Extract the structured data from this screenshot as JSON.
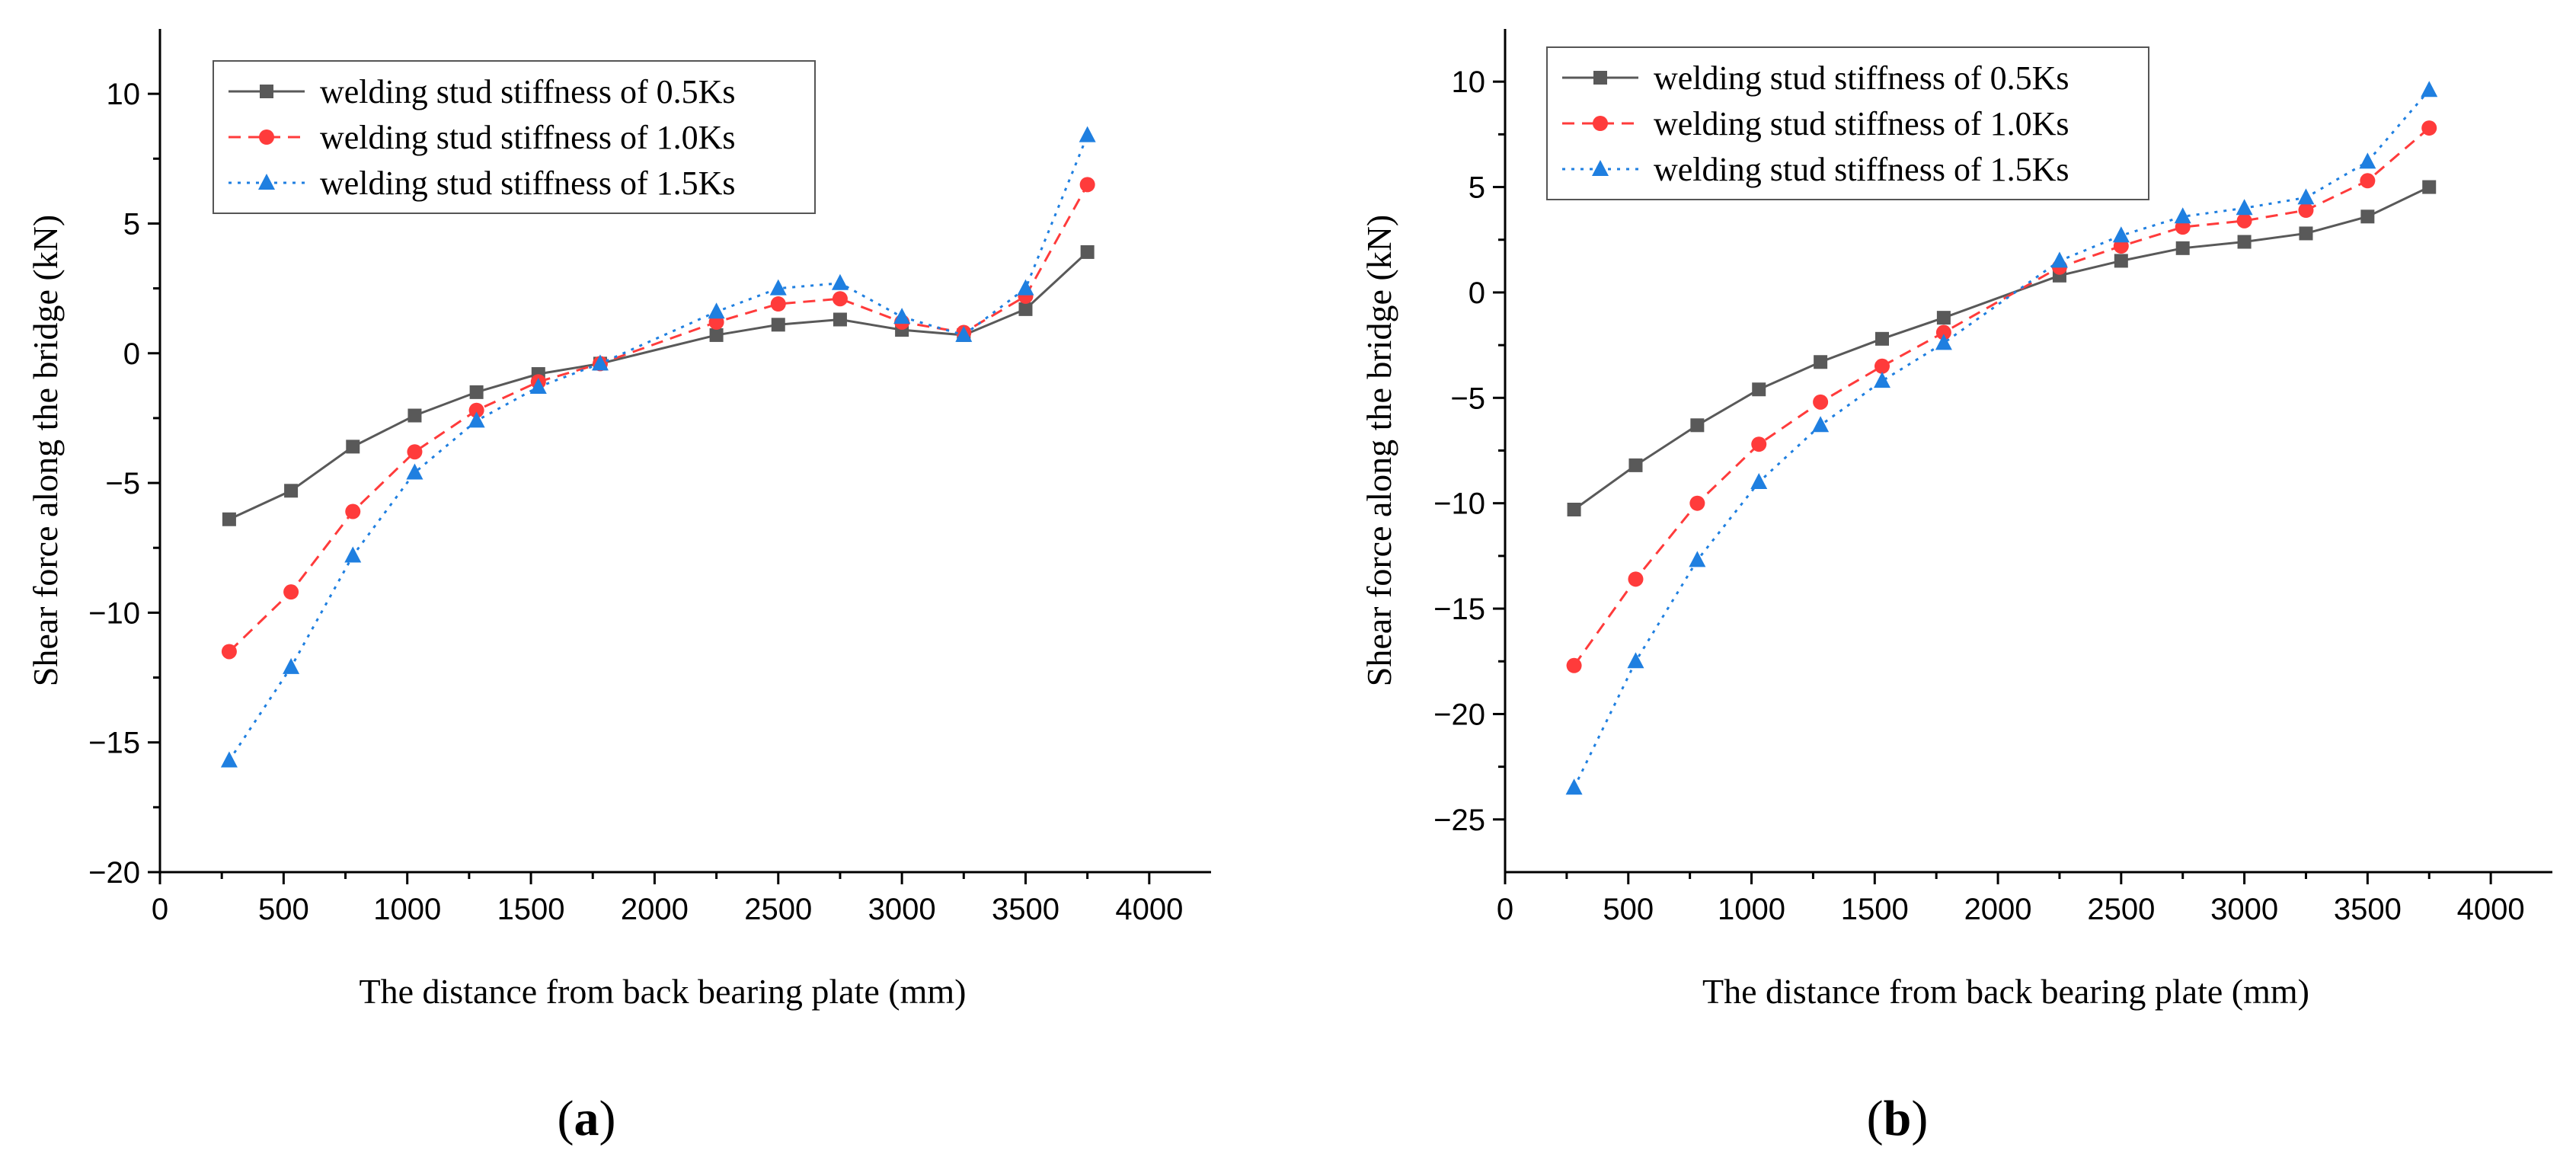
{
  "chart_data": [
    {
      "type": "line",
      "panel_label": "a",
      "xlabel": "The distance from back bearing plate (mm)",
      "ylabel": "Shear force along the bridge (kN)",
      "xlim": [
        0,
        4250
      ],
      "ylim": [
        -20,
        12.5
      ],
      "xticks": [
        0,
        500,
        1000,
        1500,
        2000,
        2500,
        3000,
        3500,
        4000
      ],
      "yticks": [
        -20,
        -15,
        -10,
        -5,
        0,
        5,
        10
      ],
      "legend_position": "top-left",
      "series": [
        {
          "name": "welding stud stiffness of 0.5Ks",
          "color": "#595959",
          "marker": "square",
          "line_style": "solid",
          "x": [
            280,
            530,
            780,
            1030,
            1280,
            1530,
            1780,
            2250,
            2500,
            2750,
            3000,
            3250,
            3500,
            3750
          ],
          "values": [
            -6.4,
            -5.3,
            -3.6,
            -2.4,
            -1.5,
            -0.8,
            -0.4,
            0.7,
            1.1,
            1.3,
            0.9,
            0.7,
            1.7,
            3.9
          ]
        },
        {
          "name": "welding stud stiffness of 1.0Ks",
          "color": "#ff3b3b",
          "marker": "circle",
          "line_style": "dashed",
          "x": [
            280,
            530,
            780,
            1030,
            1280,
            1530,
            1780,
            2250,
            2500,
            2750,
            3000,
            3250,
            3500,
            3750
          ],
          "values": [
            -11.5,
            -9.2,
            -6.1,
            -3.8,
            -2.2,
            -1.1,
            -0.4,
            1.2,
            1.9,
            2.1,
            1.2,
            0.8,
            2.2,
            6.5
          ]
        },
        {
          "name": "welding stud stiffness of 1.5Ks",
          "color": "#1f7fe0",
          "marker": "triangle",
          "line_style": "dotted",
          "x": [
            280,
            530,
            780,
            1030,
            1280,
            1530,
            1780,
            2250,
            2500,
            2750,
            3000,
            3250,
            3500,
            3750
          ],
          "values": [
            -15.7,
            -12.1,
            -7.8,
            -4.6,
            -2.6,
            -1.3,
            -0.4,
            1.6,
            2.5,
            2.7,
            1.4,
            0.7,
            2.5,
            8.4
          ]
        }
      ]
    },
    {
      "type": "line",
      "panel_label": "b",
      "xlabel": "The distance from back bearing plate (mm)",
      "ylabel": "Shear force along the bridge (kN)",
      "xlim": [
        0,
        4250
      ],
      "ylim": [
        -27.5,
        12.5
      ],
      "xticks": [
        0,
        500,
        1000,
        1500,
        2000,
        2500,
        3000,
        3500,
        4000
      ],
      "yticks": [
        -25,
        -20,
        -15,
        -10,
        -5,
        0,
        5,
        10
      ],
      "legend_position": "top-left",
      "series": [
        {
          "name": "welding stud stiffness of 0.5Ks",
          "color": "#595959",
          "marker": "square",
          "line_style": "solid",
          "x": [
            280,
            530,
            780,
            1030,
            1280,
            1530,
            1780,
            2250,
            2500,
            2750,
            3000,
            3250,
            3500,
            3750
          ],
          "values": [
            -10.3,
            -8.2,
            -6.3,
            -4.6,
            -3.3,
            -2.2,
            -1.2,
            0.8,
            1.5,
            2.1,
            2.4,
            2.8,
            3.6,
            5.0
          ]
        },
        {
          "name": "welding stud stiffness of 1.0Ks",
          "color": "#ff3b3b",
          "marker": "circle",
          "line_style": "dashed",
          "x": [
            280,
            530,
            780,
            1030,
            1280,
            1530,
            1780,
            2250,
            2500,
            2750,
            3000,
            3250,
            3500,
            3750
          ],
          "values": [
            -17.7,
            -13.6,
            -10.0,
            -7.2,
            -5.2,
            -3.5,
            -1.9,
            1.2,
            2.2,
            3.1,
            3.4,
            3.9,
            5.3,
            7.8
          ]
        },
        {
          "name": "welding stud stiffness of 1.5Ks",
          "color": "#1f7fe0",
          "marker": "triangle",
          "line_style": "dotted",
          "x": [
            280,
            530,
            780,
            1030,
            1280,
            1530,
            1780,
            2250,
            2500,
            2750,
            3000,
            3250,
            3500,
            3750
          ],
          "values": [
            -23.5,
            -17.5,
            -12.7,
            -9.0,
            -6.3,
            -4.2,
            -2.4,
            1.5,
            2.7,
            3.6,
            4.0,
            4.5,
            6.2,
            9.6
          ]
        }
      ]
    }
  ]
}
